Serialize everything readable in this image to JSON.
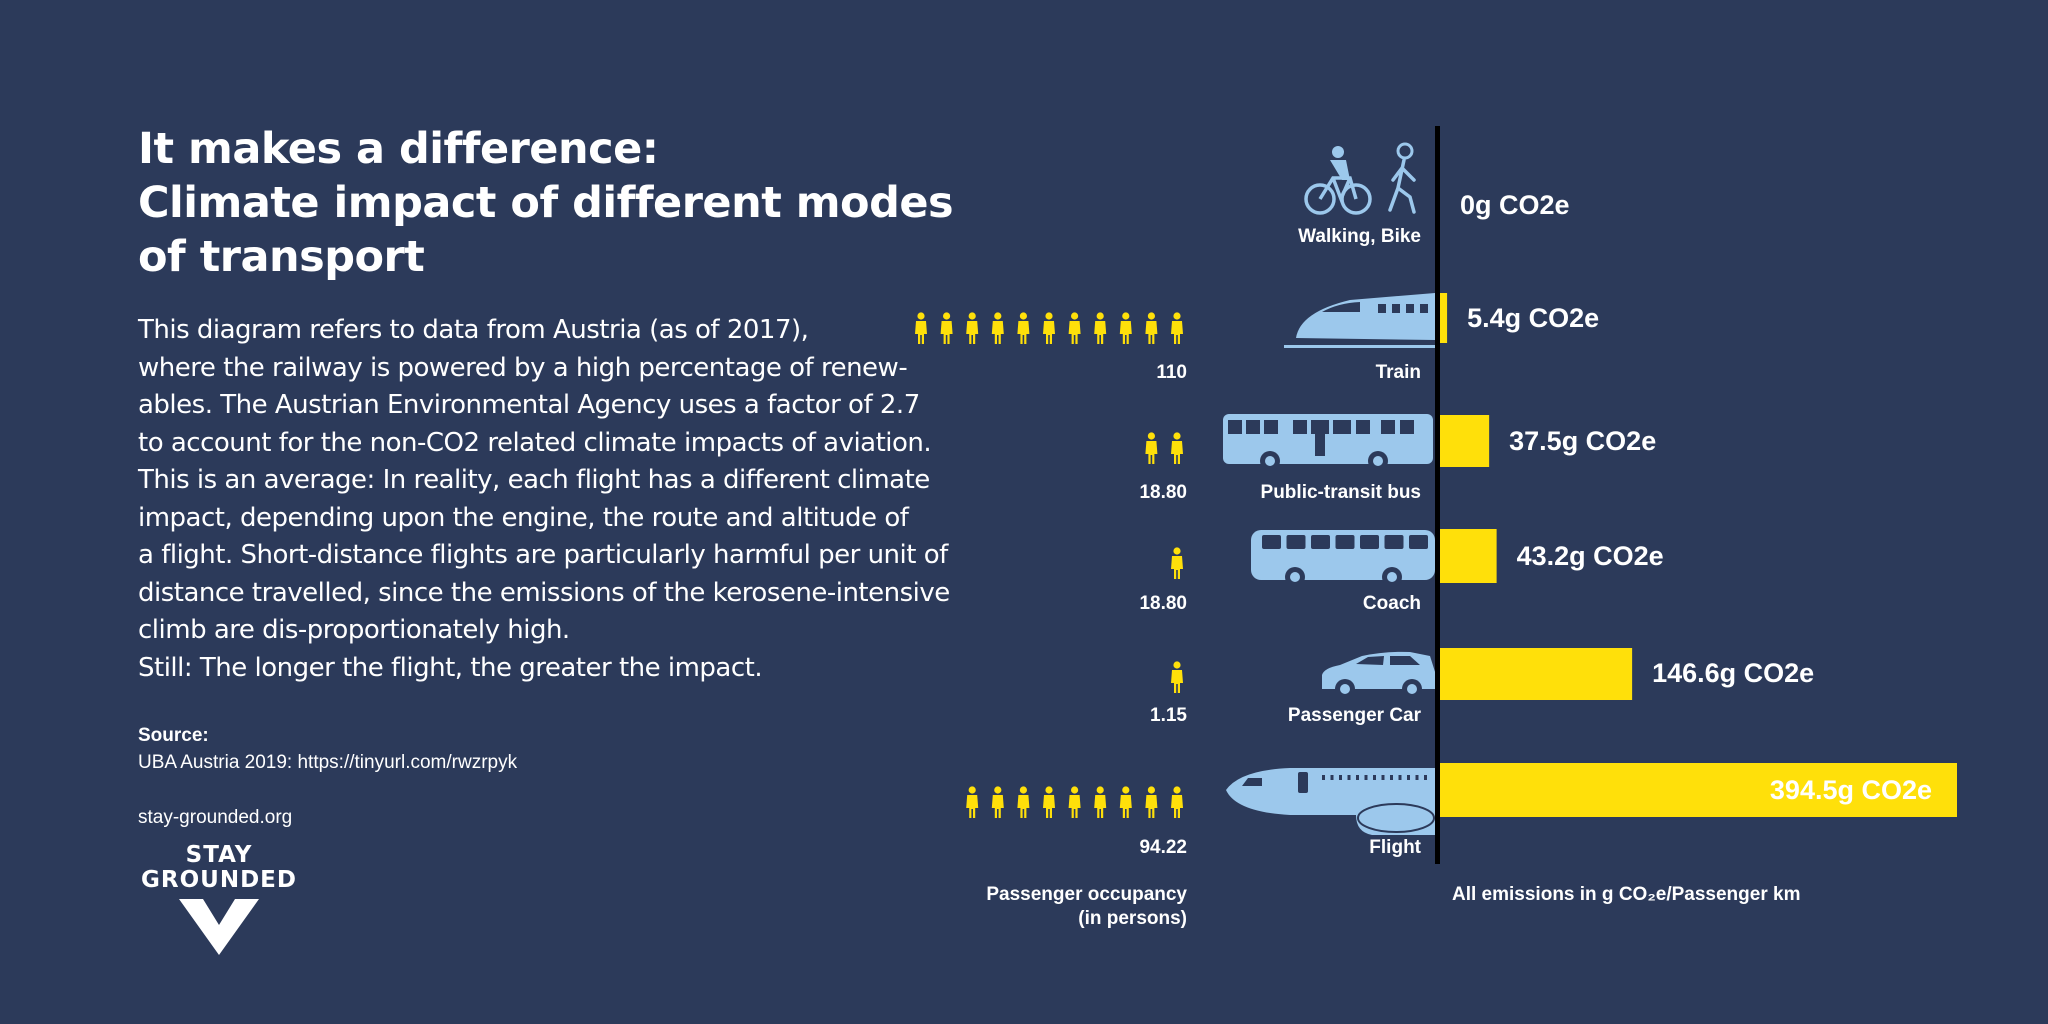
{
  "title_lines": [
    "It makes a difference:",
    "Climate impact of different modes",
    "of transport"
  ],
  "body_lines": [
    "This diagram refers to data from Austria (as of 2017),",
    "where the railway is powered by a high percentage of renew-",
    "ables. The Austrian Environmental Agency uses a factor of 2.7",
    "to account for the non-CO2 related climate impacts of aviation.",
    "This is an average: In reality, each flight has a different climate",
    "impact, depending upon the engine, the route and altitude of",
    "a flight. Short-distance flights are particularly harmful per unit of",
    "distance travelled, since the emissions of the kerosene-intensive",
    "climb are dis-proportionately high.",
    "Still: The longer the flight, the greater the impact."
  ],
  "source": {
    "label": "Source:",
    "text": "UBA Austria 2019: https://tinyurl.com/rwzrpyk"
  },
  "website": "stay-grounded.org",
  "logo": {
    "line1": "STAY",
    "line2": "GROUNDED"
  },
  "colors": {
    "background": "#2c3a5a",
    "bar": "#ffe00a",
    "icon": "#9cc8ec",
    "axis": "#000000",
    "text": "#ffffff"
  },
  "chart_data": {
    "type": "bar",
    "orientation": "horizontal",
    "unit": "g CO2e per passenger km",
    "xlabel": "All emissions in g CO₂e/Passenger km",
    "occupancy_label_lines": [
      "Passenger occupancy",
      "(in persons)"
    ],
    "categories": [
      "Walking, Bike",
      "Train",
      "Public-transit bus",
      "Coach",
      "Passenger Car",
      "Flight"
    ],
    "values": [
      0,
      5.4,
      37.5,
      43.2,
      146.6,
      394.5
    ],
    "value_labels": [
      "0g CO2e",
      "5.4g CO2e",
      "37.5g CO2e",
      "43.2g CO2e",
      "146.6g CO2e",
      "394.5g CO2e"
    ],
    "occupancy": [
      "",
      "110",
      "18.80",
      "18.80",
      "1.15",
      "94.22"
    ],
    "occupancy_person_icons": [
      0,
      11,
      2,
      1,
      1,
      9
    ],
    "icons": [
      "bike-walk-icon",
      "train-icon",
      "bus-icon",
      "coach-icon",
      "car-icon",
      "plane-icon"
    ],
    "xlim": [
      0,
      394.5
    ]
  }
}
